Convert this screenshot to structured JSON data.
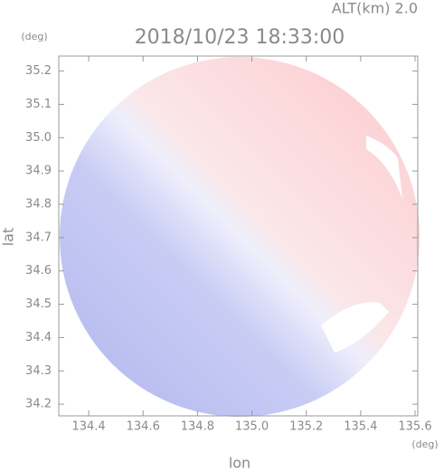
{
  "chart_data": {
    "type": "radar-image",
    "title": "2018/10/23 18:33:00",
    "subtitle": "ALT(km) 2.0",
    "x_label": "lon",
    "y_label": "lat",
    "x_unit": "(deg)",
    "y_unit": "(deg)",
    "xlim": [
      134.29,
      135.61
    ],
    "ylim": [
      34.165,
      35.245
    ],
    "xticks": [
      134.4,
      134.6,
      134.8,
      {
        "value": 135,
        "label": "135.0"
      },
      135.2,
      135.4,
      135.6
    ],
    "yticks": [
      34.2,
      34.3,
      34.4,
      34.5,
      34.6,
      34.7,
      34.8,
      34.9,
      {
        "value": 35,
        "label": "35.0"
      },
      35.1,
      35.2
    ]
  }
}
